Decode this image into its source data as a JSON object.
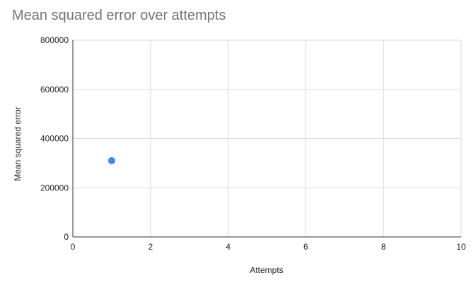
{
  "chart_data": {
    "type": "scatter",
    "title": "Mean squared error over attempts",
    "xlabel": "Attempts",
    "ylabel": "Mean squared error",
    "xlim": [
      0,
      10
    ],
    "ylim": [
      0,
      800000
    ],
    "x_ticks": [
      0,
      2,
      4,
      6,
      8,
      10
    ],
    "y_ticks": [
      0,
      200000,
      400000,
      600000,
      800000
    ],
    "x_tick_labels": [
      "0",
      "2",
      "4",
      "6",
      "8",
      "10"
    ],
    "y_tick_labels": [
      "0",
      "200000",
      "400000",
      "600000",
      "800000"
    ],
    "grid": true,
    "legend": "none",
    "series": [
      {
        "color": "#4285f4",
        "points": [
          {
            "x": 1,
            "y": 310000
          }
        ]
      }
    ]
  }
}
